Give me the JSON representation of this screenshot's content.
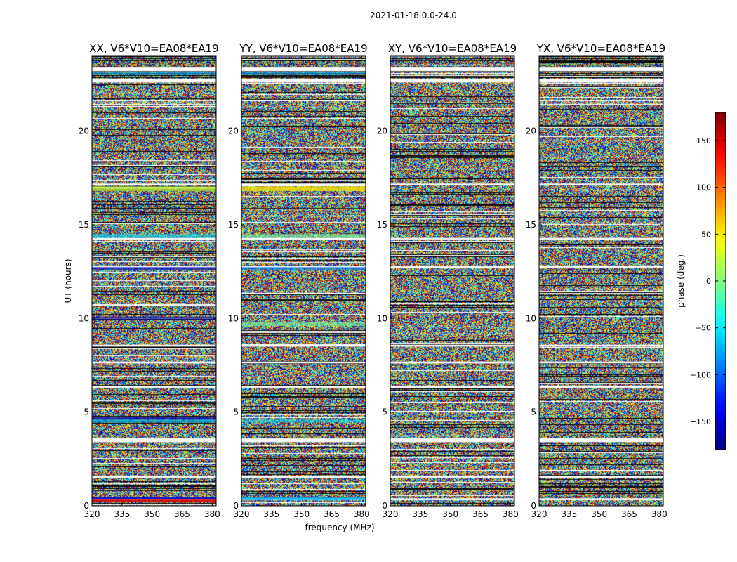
{
  "figure": {
    "suptitle": "2021-01-18 0.0-24.0",
    "ylabel": "UT (hours)",
    "xlabel": "frequency (MHz)"
  },
  "chart_data": {
    "type": "heatmap",
    "title": "2021-01-18 0.0-24.0",
    "xlabel": "frequency (MHz)",
    "ylabel": "UT (hours)",
    "xlim": [
      320,
      382
    ],
    "ylim": [
      0,
      24
    ],
    "x_ticks": [
      320,
      335,
      350,
      365,
      380
    ],
    "y_ticks": [
      0,
      5,
      10,
      15,
      20
    ],
    "panels": [
      {
        "title": "XX, V6*V10=EA08*EA19",
        "polarization": "XX"
      },
      {
        "title": "YY, V6*V10=EA08*EA19",
        "polarization": "YY"
      },
      {
        "title": "XY, V6*V10=EA08*EA19",
        "polarization": "XY"
      },
      {
        "title": "YX, V6*V10=EA08*EA19",
        "polarization": "YX"
      }
    ],
    "values_description": "phase noise (uniform random -180..180 deg)",
    "flagged_gaps_hours": [
      [
        23.2,
        23.4
      ],
      [
        22.6,
        22.8
      ],
      [
        17.1,
        17.2
      ],
      [
        14.2,
        14.3
      ],
      [
        12.7,
        12.8
      ],
      [
        8.5,
        8.6
      ],
      [
        7.6,
        7.7
      ],
      [
        6.3,
        6.4
      ],
      [
        3.4,
        3.6
      ],
      [
        1.5,
        1.6
      ],
      [
        0.3,
        0.4
      ]
    ],
    "colorbar": {
      "label": "phase (deg.)",
      "range": [
        -180,
        180
      ],
      "ticks": [
        150,
        100,
        50,
        0,
        -50,
        -100,
        -150
      ],
      "colormap": "jet"
    }
  }
}
